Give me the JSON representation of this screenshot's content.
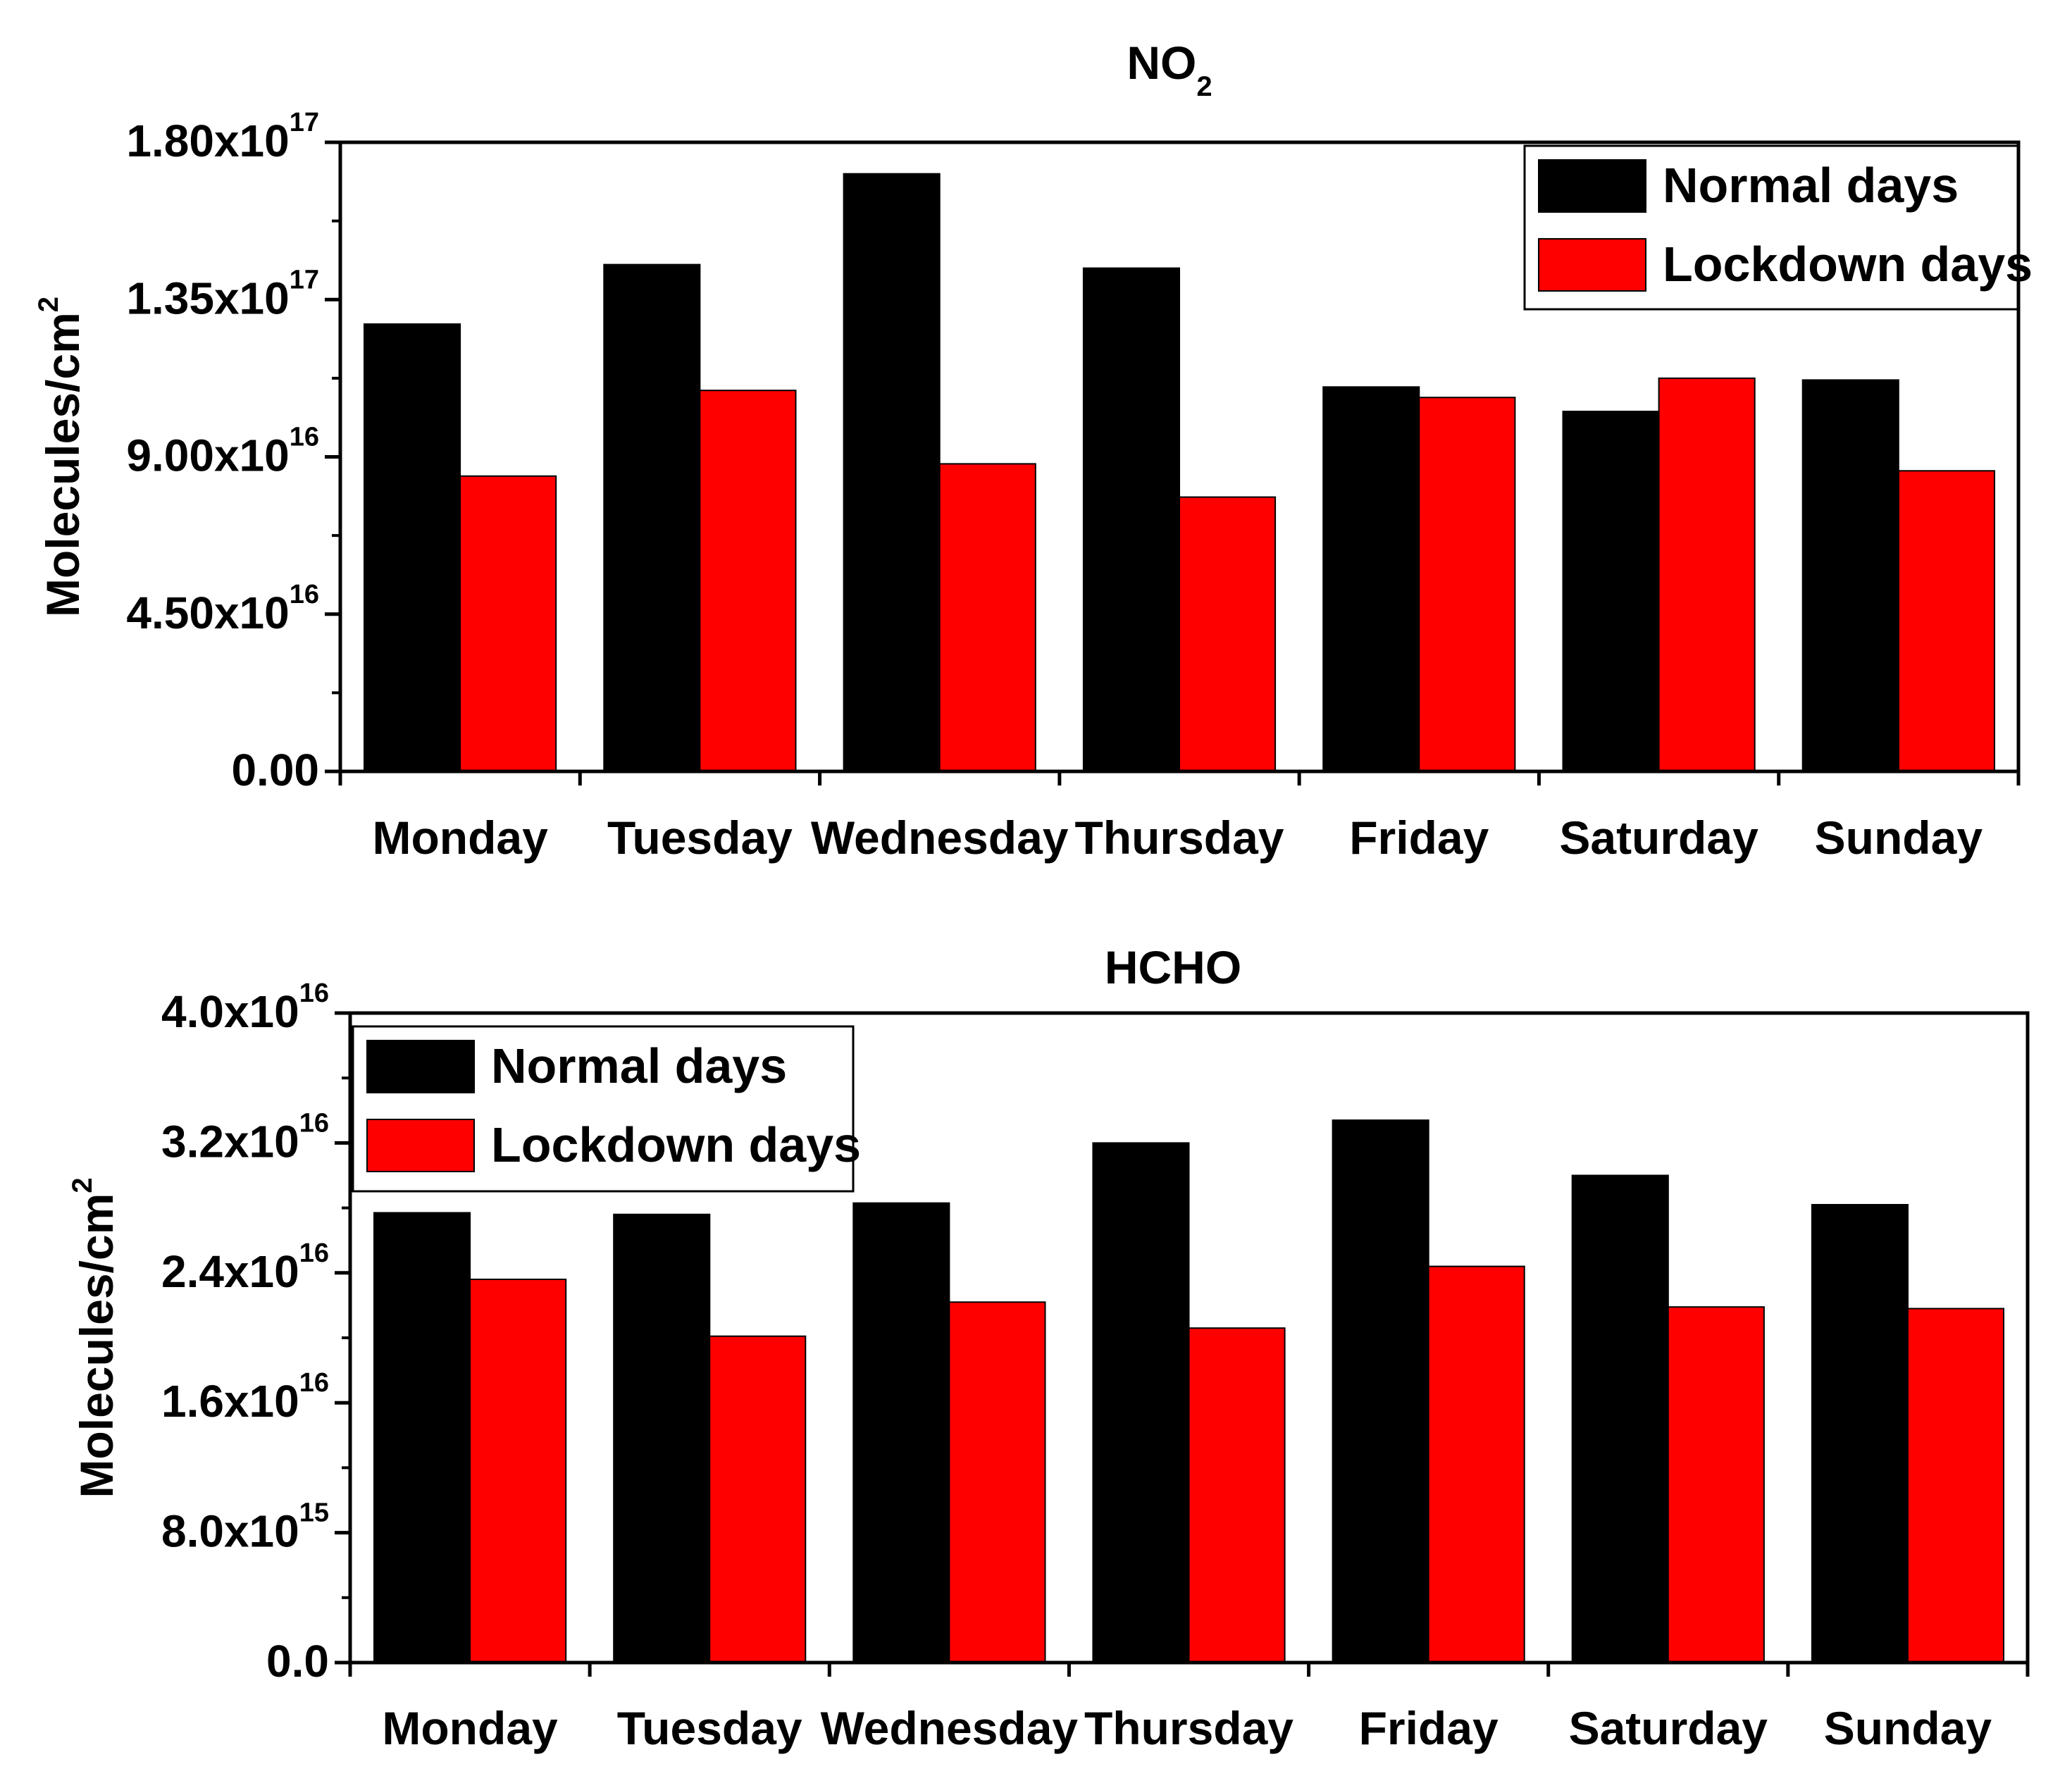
{
  "colors": {
    "normal": "#000000",
    "lockdown": "#ff0000",
    "axis": "#000000",
    "background": "#ffffff"
  },
  "chart_data": [
    {
      "type": "bar",
      "title_main": "NO",
      "title_sub": "2",
      "ylabel_main": "Molecules/cm",
      "ylabel_sup": "2",
      "xlabel": "",
      "ylim": [
        0,
        1.8e+17
      ],
      "yticks": [
        0,
        4.5e+16,
        9e+16,
        1.35e+17,
        1.8e+17
      ],
      "ytick_labels": [
        {
          "mant": "0.00",
          "exp": ""
        },
        {
          "mant": "4.50x10",
          "exp": "16"
        },
        {
          "mant": "9.00x10",
          "exp": "16"
        },
        {
          "mant": "1.35x10",
          "exp": "17"
        },
        {
          "mant": "1.80x10",
          "exp": "17"
        }
      ],
      "categories": [
        "Monday",
        "Tuesday",
        "Wednesday",
        "Thursday",
        "Friday",
        "Saturday",
        "Sunday"
      ],
      "series": [
        {
          "name": "Normal days",
          "key": "normal",
          "values": [
            1.28e+17,
            1.45e+17,
            1.71e+17,
            1.44e+17,
            1.1e+17,
            1.03e+17,
            1.12e+17
          ]
        },
        {
          "name": "Lockdown days",
          "key": "lockdown",
          "values": [
            8.45e+16,
            1.09e+17,
            8.8e+16,
            7.85e+16,
            1.07e+17,
            1.125e+17,
            8.6e+16
          ]
        }
      ],
      "legend_position": "top-right"
    },
    {
      "type": "bar",
      "title_main": "HCHO",
      "title_sub": "",
      "ylabel_main": "Molecules/cm",
      "ylabel_sup": "2",
      "xlabel": "",
      "ylim": [
        0,
        4e+16
      ],
      "yticks": [
        0,
        8000000000000000.0,
        1.6e+16,
        2.4e+16,
        3.2e+16,
        4e+16
      ],
      "ytick_labels": [
        {
          "mant": "0.0",
          "exp": ""
        },
        {
          "mant": "8.0x10",
          "exp": "15"
        },
        {
          "mant": "1.6x10",
          "exp": "16"
        },
        {
          "mant": "2.4x10",
          "exp": "16"
        },
        {
          "mant": "3.2x10",
          "exp": "16"
        },
        {
          "mant": "4.0x10",
          "exp": "16"
        }
      ],
      "categories": [
        "Monday",
        "Tuesday",
        "Wednesday",
        "Thursday",
        "Friday",
        "Saturday",
        "Sunday"
      ],
      "series": [
        {
          "name": "Normal days",
          "key": "normal",
          "values": [
            2.77e+16,
            2.76e+16,
            2.83e+16,
            3.2e+16,
            3.34e+16,
            3e+16,
            2.82e+16
          ]
        },
        {
          "name": "Lockdown days",
          "key": "lockdown",
          "values": [
            2.36e+16,
            2.01e+16,
            2.22e+16,
            2.06e+16,
            2.44e+16,
            2.19e+16,
            2.18e+16
          ]
        }
      ],
      "legend_position": "top-left"
    }
  ]
}
